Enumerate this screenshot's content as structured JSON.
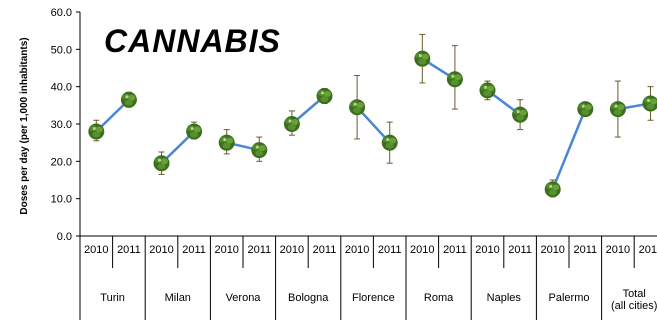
{
  "chart_data": {
    "type": "line",
    "title": "CANNABIS",
    "ylabel": "Doses per day (per 1,000 inhabitants)",
    "xlabel": "",
    "ylim": [
      0,
      60
    ],
    "yticks": [
      "0.0",
      "10.0",
      "20.0",
      "30.0",
      "40.0",
      "50.0",
      "60.0"
    ],
    "grid": false,
    "legend": "none",
    "line_color": "#4a86d8",
    "marker_color": "#4f8a2a",
    "errorbar_color": "#6b5a2a",
    "years": [
      "2010",
      "2011"
    ],
    "cities": [
      {
        "name": "Turin",
        "values": [
          28.0,
          36.5
        ],
        "err_low": [
          25.5,
          34.5
        ],
        "err_high": [
          31.0,
          38.5
        ]
      },
      {
        "name": "Milan",
        "values": [
          19.5,
          28.0
        ],
        "err_low": [
          16.5,
          26.0
        ],
        "err_high": [
          22.5,
          30.5
        ]
      },
      {
        "name": "Verona",
        "values": [
          25.0,
          23.0
        ],
        "err_low": [
          22.0,
          20.0
        ],
        "err_high": [
          28.5,
          26.5
        ]
      },
      {
        "name": "Bologna",
        "values": [
          30.0,
          37.5
        ],
        "err_low": [
          27.0,
          35.5
        ],
        "err_high": [
          33.5,
          39.5
        ]
      },
      {
        "name": "Florence",
        "values": [
          34.5,
          25.0
        ],
        "err_low": [
          26.0,
          19.5
        ],
        "err_high": [
          43.0,
          30.5
        ]
      },
      {
        "name": "Roma",
        "values": [
          47.5,
          42.0
        ],
        "err_low": [
          41.0,
          34.0
        ],
        "err_high": [
          54.0,
          51.0
        ]
      },
      {
        "name": "Naples",
        "values": [
          39.0,
          32.5
        ],
        "err_low": [
          36.5,
          28.5
        ],
        "err_high": [
          41.5,
          36.5
        ]
      },
      {
        "name": "Palermo",
        "values": [
          12.5,
          34.0
        ],
        "err_low": [
          10.5,
          33.0
        ],
        "err_high": [
          15.0,
          35.0
        ]
      },
      {
        "name": "Total",
        "name2": "(all cities)",
        "values": [
          34.0,
          35.5
        ],
        "err_low": [
          26.5,
          31.0
        ],
        "err_high": [
          41.5,
          40.0
        ]
      }
    ]
  }
}
